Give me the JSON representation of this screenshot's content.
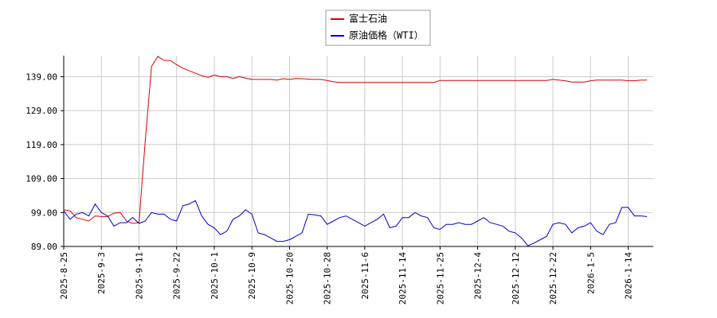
{
  "chart_data": {
    "type": "line",
    "categories": [
      "2025-8-25",
      null,
      null,
      null,
      null,
      null,
      "2025-9-3",
      null,
      null,
      null,
      null,
      null,
      "2025-9-11",
      null,
      null,
      null,
      null,
      null,
      "2025-9-22",
      null,
      null,
      null,
      null,
      null,
      "2025-10-1",
      null,
      null,
      null,
      null,
      null,
      "2025-10-9",
      null,
      null,
      null,
      null,
      null,
      "2025-10-20",
      null,
      null,
      null,
      null,
      null,
      "2025-10-28",
      null,
      null,
      null,
      null,
      null,
      "2025-11-6",
      null,
      null,
      null,
      null,
      null,
      "2025-11-14",
      null,
      null,
      null,
      null,
      null,
      "2025-11-25",
      null,
      null,
      null,
      null,
      null,
      "2025-12-4",
      null,
      null,
      null,
      null,
      null,
      "2025-12-12",
      null,
      null,
      null,
      null,
      null,
      "2025-12-22",
      null,
      null,
      null,
      null,
      null,
      "2026-1-5",
      null,
      null,
      null,
      null,
      null,
      "2026-1-14",
      null,
      null,
      null
    ],
    "series": [
      {
        "name": "富士石油",
        "color": "#dd0000",
        "values": [
          99.8,
          99.5,
          97.5,
          97,
          96.5,
          98,
          97.8,
          97.8,
          98.8,
          99,
          96.5,
          95.8,
          96,
          120,
          142,
          145,
          143.8,
          143.8,
          142.5,
          141.5,
          140.8,
          140,
          139.3,
          138.8,
          139.5,
          139,
          139,
          138.5,
          139,
          138.6,
          138.2,
          138.2,
          138.2,
          138.2,
          138,
          138.4,
          138.2,
          138.5,
          138.4,
          138.3,
          138.2,
          138.2,
          137.9,
          137.5,
          137.3,
          137.3,
          137.3,
          137.3,
          137.3,
          137.3,
          137.3,
          137.3,
          137.3,
          137.3,
          137.3,
          137.3,
          137.3,
          137.3,
          137.3,
          137.3,
          137.9,
          137.9,
          137.9,
          137.9,
          137.9,
          137.9,
          137.9,
          137.9,
          137.9,
          137.9,
          137.9,
          137.9,
          137.9,
          137.9,
          137.9,
          137.9,
          137.9,
          137.9,
          138.2,
          138,
          137.8,
          137.4,
          137.4,
          137.4,
          137.8,
          138,
          138,
          138,
          138,
          138,
          137.8,
          137.8,
          138,
          138
        ]
      },
      {
        "name": "原油価格（WTI）",
        "color": "#0000cc",
        "values": [
          99.5,
          97,
          98.5,
          99,
          98,
          101.5,
          99,
          98,
          95,
          96,
          96,
          97.5,
          95.8,
          96.5,
          99,
          98.5,
          98.5,
          97,
          96.5,
          101,
          101.5,
          102.5,
          98,
          95.5,
          94.5,
          92.5,
          93.5,
          97,
          98,
          99.8,
          98.5,
          93,
          92.5,
          91.5,
          90.5,
          90.5,
          91,
          92,
          93,
          98.5,
          98.3,
          98,
          95.5,
          96.5,
          97.5,
          98,
          97,
          96,
          95,
          96,
          97,
          98.5,
          94.5,
          95,
          97.5,
          97.5,
          99,
          98,
          97.5,
          94.5,
          94,
          95.5,
          95.5,
          96,
          95.5,
          95.5,
          96.5,
          97.5,
          96,
          95.5,
          95,
          93.5,
          93,
          91.5,
          89.2,
          90,
          91,
          92,
          95.5,
          96,
          95.5,
          93,
          94.5,
          95,
          96,
          93.5,
          92.5,
          95.5,
          96,
          100.5,
          100.5,
          98,
          98,
          97.8
        ]
      }
    ],
    "ylim": [
      89,
      145.2
    ],
    "yticks": [
      {
        "value": 89,
        "label": "89.00"
      },
      {
        "value": 99,
        "label": "99.00"
      },
      {
        "value": 109,
        "label": "109.00"
      },
      {
        "value": 119,
        "label": "119.00"
      },
      {
        "value": 129,
        "label": "129.00"
      },
      {
        "value": 139,
        "label": "139.00"
      }
    ],
    "grid": true
  }
}
